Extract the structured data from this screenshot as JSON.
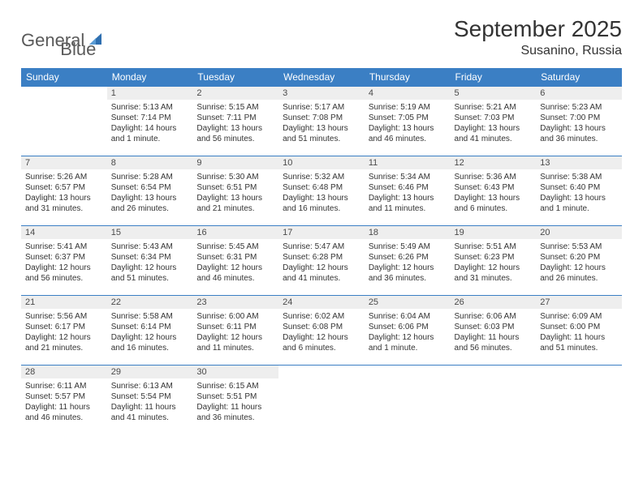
{
  "logo": {
    "word1": "General",
    "word2": "Blue"
  },
  "title": {
    "month": "September 2025",
    "location": "Susanino, Russia"
  },
  "styling": {
    "header_bg": "#3b7fc4",
    "header_fg": "#ffffff",
    "daynum_bg": "#eeeeee",
    "border_color": "#3b7fc4",
    "text_color": "#333333",
    "body_fontsize": 10,
    "daynum_fontsize": 11,
    "header_fontsize": 12,
    "title_fontsize": 28,
    "location_fontsize": 16
  },
  "weekdays": [
    "Sunday",
    "Monday",
    "Tuesday",
    "Wednesday",
    "Thursday",
    "Friday",
    "Saturday"
  ],
  "weeks": [
    [
      {
        "n": "",
        "lines": []
      },
      {
        "n": "1",
        "lines": [
          "Sunrise: 5:13 AM",
          "Sunset: 7:14 PM",
          "Daylight: 14 hours",
          "and 1 minute."
        ]
      },
      {
        "n": "2",
        "lines": [
          "Sunrise: 5:15 AM",
          "Sunset: 7:11 PM",
          "Daylight: 13 hours",
          "and 56 minutes."
        ]
      },
      {
        "n": "3",
        "lines": [
          "Sunrise: 5:17 AM",
          "Sunset: 7:08 PM",
          "Daylight: 13 hours",
          "and 51 minutes."
        ]
      },
      {
        "n": "4",
        "lines": [
          "Sunrise: 5:19 AM",
          "Sunset: 7:05 PM",
          "Daylight: 13 hours",
          "and 46 minutes."
        ]
      },
      {
        "n": "5",
        "lines": [
          "Sunrise: 5:21 AM",
          "Sunset: 7:03 PM",
          "Daylight: 13 hours",
          "and 41 minutes."
        ]
      },
      {
        "n": "6",
        "lines": [
          "Sunrise: 5:23 AM",
          "Sunset: 7:00 PM",
          "Daylight: 13 hours",
          "and 36 minutes."
        ]
      }
    ],
    [
      {
        "n": "7",
        "lines": [
          "Sunrise: 5:26 AM",
          "Sunset: 6:57 PM",
          "Daylight: 13 hours",
          "and 31 minutes."
        ]
      },
      {
        "n": "8",
        "lines": [
          "Sunrise: 5:28 AM",
          "Sunset: 6:54 PM",
          "Daylight: 13 hours",
          "and 26 minutes."
        ]
      },
      {
        "n": "9",
        "lines": [
          "Sunrise: 5:30 AM",
          "Sunset: 6:51 PM",
          "Daylight: 13 hours",
          "and 21 minutes."
        ]
      },
      {
        "n": "10",
        "lines": [
          "Sunrise: 5:32 AM",
          "Sunset: 6:48 PM",
          "Daylight: 13 hours",
          "and 16 minutes."
        ]
      },
      {
        "n": "11",
        "lines": [
          "Sunrise: 5:34 AM",
          "Sunset: 6:46 PM",
          "Daylight: 13 hours",
          "and 11 minutes."
        ]
      },
      {
        "n": "12",
        "lines": [
          "Sunrise: 5:36 AM",
          "Sunset: 6:43 PM",
          "Daylight: 13 hours",
          "and 6 minutes."
        ]
      },
      {
        "n": "13",
        "lines": [
          "Sunrise: 5:38 AM",
          "Sunset: 6:40 PM",
          "Daylight: 13 hours",
          "and 1 minute."
        ]
      }
    ],
    [
      {
        "n": "14",
        "lines": [
          "Sunrise: 5:41 AM",
          "Sunset: 6:37 PM",
          "Daylight: 12 hours",
          "and 56 minutes."
        ]
      },
      {
        "n": "15",
        "lines": [
          "Sunrise: 5:43 AM",
          "Sunset: 6:34 PM",
          "Daylight: 12 hours",
          "and 51 minutes."
        ]
      },
      {
        "n": "16",
        "lines": [
          "Sunrise: 5:45 AM",
          "Sunset: 6:31 PM",
          "Daylight: 12 hours",
          "and 46 minutes."
        ]
      },
      {
        "n": "17",
        "lines": [
          "Sunrise: 5:47 AM",
          "Sunset: 6:28 PM",
          "Daylight: 12 hours",
          "and 41 minutes."
        ]
      },
      {
        "n": "18",
        "lines": [
          "Sunrise: 5:49 AM",
          "Sunset: 6:26 PM",
          "Daylight: 12 hours",
          "and 36 minutes."
        ]
      },
      {
        "n": "19",
        "lines": [
          "Sunrise: 5:51 AM",
          "Sunset: 6:23 PM",
          "Daylight: 12 hours",
          "and 31 minutes."
        ]
      },
      {
        "n": "20",
        "lines": [
          "Sunrise: 5:53 AM",
          "Sunset: 6:20 PM",
          "Daylight: 12 hours",
          "and 26 minutes."
        ]
      }
    ],
    [
      {
        "n": "21",
        "lines": [
          "Sunrise: 5:56 AM",
          "Sunset: 6:17 PM",
          "Daylight: 12 hours",
          "and 21 minutes."
        ]
      },
      {
        "n": "22",
        "lines": [
          "Sunrise: 5:58 AM",
          "Sunset: 6:14 PM",
          "Daylight: 12 hours",
          "and 16 minutes."
        ]
      },
      {
        "n": "23",
        "lines": [
          "Sunrise: 6:00 AM",
          "Sunset: 6:11 PM",
          "Daylight: 12 hours",
          "and 11 minutes."
        ]
      },
      {
        "n": "24",
        "lines": [
          "Sunrise: 6:02 AM",
          "Sunset: 6:08 PM",
          "Daylight: 12 hours",
          "and 6 minutes."
        ]
      },
      {
        "n": "25",
        "lines": [
          "Sunrise: 6:04 AM",
          "Sunset: 6:06 PM",
          "Daylight: 12 hours",
          "and 1 minute."
        ]
      },
      {
        "n": "26",
        "lines": [
          "Sunrise: 6:06 AM",
          "Sunset: 6:03 PM",
          "Daylight: 11 hours",
          "and 56 minutes."
        ]
      },
      {
        "n": "27",
        "lines": [
          "Sunrise: 6:09 AM",
          "Sunset: 6:00 PM",
          "Daylight: 11 hours",
          "and 51 minutes."
        ]
      }
    ],
    [
      {
        "n": "28",
        "lines": [
          "Sunrise: 6:11 AM",
          "Sunset: 5:57 PM",
          "Daylight: 11 hours",
          "and 46 minutes."
        ]
      },
      {
        "n": "29",
        "lines": [
          "Sunrise: 6:13 AM",
          "Sunset: 5:54 PM",
          "Daylight: 11 hours",
          "and 41 minutes."
        ]
      },
      {
        "n": "30",
        "lines": [
          "Sunrise: 6:15 AM",
          "Sunset: 5:51 PM",
          "Daylight: 11 hours",
          "and 36 minutes."
        ]
      },
      {
        "n": "",
        "lines": []
      },
      {
        "n": "",
        "lines": []
      },
      {
        "n": "",
        "lines": []
      },
      {
        "n": "",
        "lines": []
      }
    ]
  ]
}
